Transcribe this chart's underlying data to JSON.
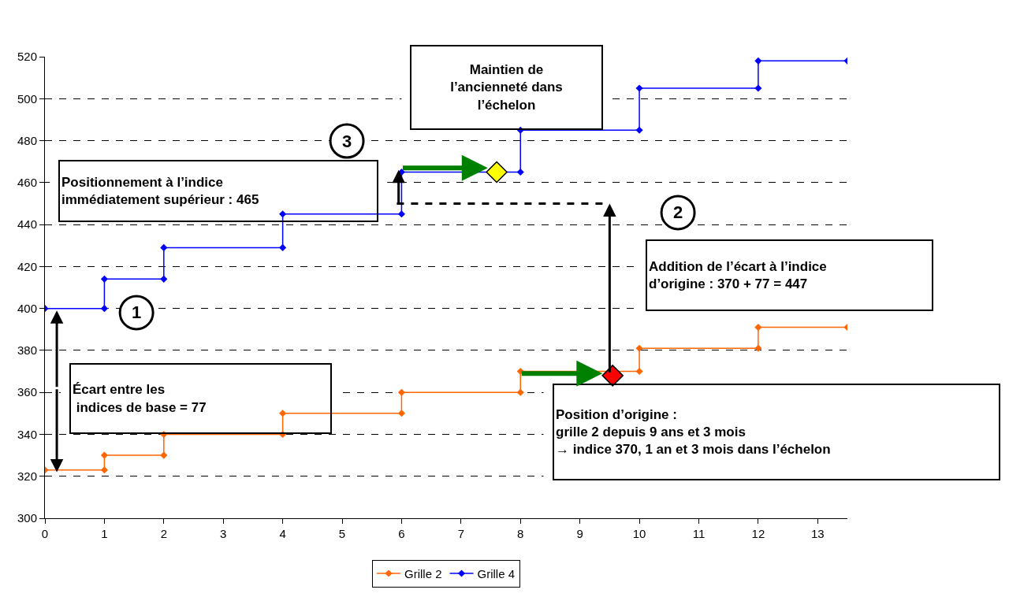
{
  "chart_data": {
    "type": "line",
    "xlim": [
      0,
      13.5
    ],
    "xticks": [
      0,
      1,
      2,
      3,
      4,
      5,
      6,
      7,
      8,
      9,
      10,
      11,
      12,
      13
    ],
    "ylim": [
      300,
      520
    ],
    "yticks": [
      300,
      320,
      340,
      360,
      380,
      400,
      420,
      440,
      460,
      480,
      500,
      520
    ],
    "grid": "y",
    "legend": "bottom",
    "marker": "diamond",
    "line_style": "solid",
    "series": [
      {
        "name": "Grille 2",
        "color": "#ff6600",
        "x": [
          0,
          1,
          1,
          2,
          2,
          4,
          4,
          6,
          6,
          8,
          8,
          10,
          10,
          12,
          12,
          13.5
        ],
        "values": [
          323,
          323,
          330,
          330,
          340,
          340,
          350,
          350,
          360,
          360,
          370,
          370,
          381,
          381,
          391,
          391
        ]
      },
      {
        "name": "Grille 4",
        "color": "#0000ff",
        "x": [
          0,
          1,
          1,
          2,
          2,
          4,
          4,
          6,
          6,
          8,
          8,
          10,
          10,
          12,
          12,
          13.5
        ],
        "values": [
          400,
          400,
          414,
          414,
          429,
          429,
          445,
          445,
          465,
          465,
          485,
          485,
          505,
          505,
          518,
          518
        ]
      },
      {
        "type": "scatter",
        "color": "#ffff00",
        "x": [
          7.6
        ],
        "values": [
          465
        ]
      },
      {
        "type": "scatter",
        "color": "#ff0000",
        "x": [
          9.55
        ],
        "values": [
          368
        ]
      }
    ],
    "annotations": [
      "Positionnement à l’indice\nimmédiatement supérieur : 465",
      "Maintien de\nl’ancienneté dans\nl’échelon",
      "Addition de l’écart à l’indice\nd’origine : 370 + 77 = 447",
      {
        "text": "Écart entre les\n indices de base = 77",
        "x": 0.2,
        "y": 400
      },
      "Position d’origine :\ngrille 2 depuis 9 ans et 3 mois\n→ indice 370, 1 an et 3 mois dans l’échelon",
      "1",
      "2",
      "3",
      "4"
    ]
  }
}
